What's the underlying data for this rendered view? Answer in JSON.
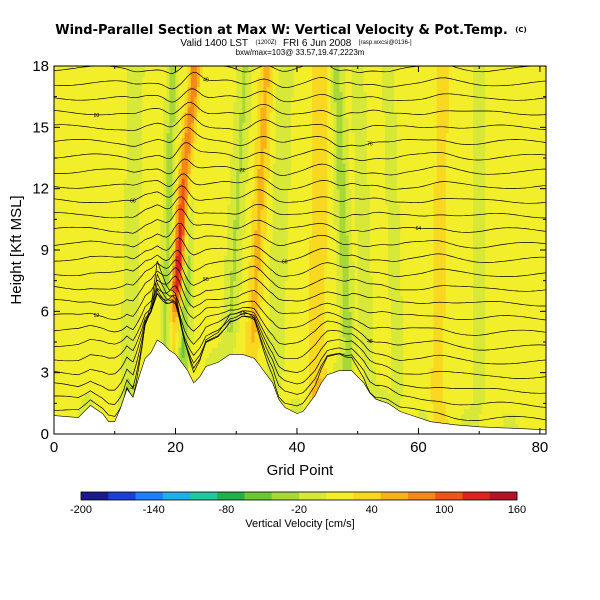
{
  "chart_data": {
    "type": "heatmap",
    "title": "Wind-Parallel Section at Max W: Vertical Velocity & Pot.Temp.",
    "title_mark": "(C)",
    "subtitle_lead": "Valid 1400 LST",
    "subtitle_paren": "(1200Z)",
    "subtitle_date": "FRI 6 Jun 2008",
    "subtitle_tail": "[rasp.wxcsi@0136-]",
    "subtitle2": "bxw/max=103@ 33.57,19.47,2223m",
    "xlabel": "Grid Point",
    "ylabel": "Height [Kft MSL]",
    "xlim": [
      0,
      81
    ],
    "ylim": [
      0,
      18
    ],
    "xticks": [
      "0",
      "20",
      "40",
      "60",
      "80"
    ],
    "yticks": [
      "0",
      "3",
      "6",
      "9",
      "12",
      "15",
      "18"
    ],
    "colorbar": {
      "label": "Vertical Velocity [cm/s]",
      "ticks": [
        "-200",
        "-140",
        "-80",
        "-20",
        "40",
        "100",
        "160"
      ],
      "range": [
        -200,
        160
      ],
      "colors": [
        "#1a1a8c",
        "#1a3fd6",
        "#1f7fff",
        "#20b0e8",
        "#20c8a0",
        "#21b04a",
        "#6cc832",
        "#a8d838",
        "#d8e838",
        "#f2ef2a",
        "#f8d820",
        "#f7b21a",
        "#f48818",
        "#ec5418",
        "#da2420",
        "#b01426"
      ]
    },
    "terrain_kft": [
      [
        0,
        0.9
      ],
      [
        4,
        0.8
      ],
      [
        6,
        1.4
      ],
      [
        8,
        1.0
      ],
      [
        9,
        0.6
      ],
      [
        10,
        0.6
      ],
      [
        11,
        1.3
      ],
      [
        12,
        2.2
      ],
      [
        13,
        1.8
      ],
      [
        14,
        2.8
      ],
      [
        15,
        3.7
      ],
      [
        16,
        4.0
      ],
      [
        17,
        4.6
      ],
      [
        18,
        4.4
      ],
      [
        19,
        4.1
      ],
      [
        20,
        3.9
      ],
      [
        21,
        3.5
      ],
      [
        22,
        3.1
      ],
      [
        23,
        2.5
      ],
      [
        24,
        2.8
      ],
      [
        25,
        3.3
      ],
      [
        27,
        3.5
      ],
      [
        29,
        3.9
      ],
      [
        31,
        3.9
      ],
      [
        33,
        3.7
      ],
      [
        34,
        3.3
      ],
      [
        36,
        2.5
      ],
      [
        37,
        1.7
      ],
      [
        38,
        1.3
      ],
      [
        40,
        1.0
      ],
      [
        41,
        1.1
      ],
      [
        42,
        1.5
      ],
      [
        43,
        1.9
      ],
      [
        44,
        2.5
      ],
      [
        45,
        2.9
      ],
      [
        47,
        3.1
      ],
      [
        49,
        3.1
      ],
      [
        50,
        2.8
      ],
      [
        51,
        2.5
      ],
      [
        52,
        2.0
      ],
      [
        53,
        1.7
      ],
      [
        55,
        1.5
      ],
      [
        57,
        1.1
      ],
      [
        59,
        0.9
      ],
      [
        62,
        0.6
      ],
      [
        66,
        0.45
      ],
      [
        70,
        0.35
      ],
      [
        74,
        0.3
      ],
      [
        78,
        0.25
      ],
      [
        81,
        0.2
      ]
    ],
    "w_features": [
      {
        "x": 18.5,
        "x_top": 23.0,
        "sx": 1.0,
        "w": 150
      },
      {
        "x": 21.0,
        "x_top": 22.5,
        "sx": 0.9,
        "w": -55
      },
      {
        "x": 18.0,
        "x_top": 19.5,
        "sx": 0.8,
        "w": -40
      },
      {
        "x": 12.0,
        "x_top": 13.5,
        "sx": 1.1,
        "w": -22
      },
      {
        "x": 28.0,
        "x_top": 31.5,
        "sx": 1.1,
        "w": -30
      },
      {
        "x": 36.0,
        "x_top": 38.0,
        "sx": 1.2,
        "w": -22
      },
      {
        "x": 49.0,
        "x_top": 46.5,
        "sx": 1.0,
        "w": -40
      },
      {
        "x": 52.0,
        "x_top": 50.0,
        "sx": 0.9,
        "w": -25
      },
      {
        "x": 57.0,
        "x_top": 55.0,
        "sx": 1.0,
        "w": -15
      },
      {
        "x": 70.0,
        "x_top": 70.0,
        "sx": 1.5,
        "w": -8
      },
      {
        "x": 32.0,
        "x_top": 35.0,
        "sx": 1.2,
        "w": 45
      },
      {
        "x": 43.0,
        "x_top": 44.0,
        "sx": 1.5,
        "w": 35
      },
      {
        "x": 63.0,
        "x_top": 64.0,
        "sx": 1.5,
        "w": 25
      }
    ],
    "contour_label_values": [
      "40",
      "44",
      "48",
      "52",
      "56",
      "60",
      "64",
      "68",
      "72",
      "76",
      "80"
    ]
  }
}
